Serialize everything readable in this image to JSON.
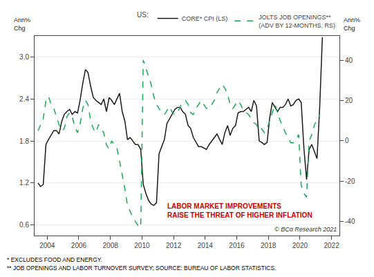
{
  "chart_data": {
    "type": "line",
    "ylabel": "Ann%\nChg",
    "y2label": "Ann%\nChg",
    "legend_title": "US:",
    "legend": "upper right",
    "grid": true,
    "xlim": [
      2003.2,
      2022.5
    ],
    "xticks": [
      2004,
      2006,
      2008,
      2010,
      2012,
      2014,
      2016,
      2018,
      2020,
      2022
    ],
    "ylim": [
      0.45,
      3.3
    ],
    "yticks": [
      0.6,
      1.2,
      1.8,
      2.4,
      {
        "value": 3.0,
        "label": "3.0"
      }
    ],
    "y2lim": [
      -47,
      52
    ],
    "y2ticks": [
      -40,
      -20,
      0,
      20,
      40
    ],
    "annotations": [
      {
        "text": "LABOR MARKET IMPROVEMENTS\nRAISE THE THREAT OF HIGHER INFLATION",
        "color": "#cc0000"
      },
      {
        "text": "© BCα Research 2021"
      }
    ],
    "footnotes": [
      "* EXCLUDES FOOD AND ENERGY.",
      "** JOB OPENINGS AND LABOR TURNOVER SURVEY; SOURCE: BUREAU OF LABOR STATISTICS."
    ],
    "series": [
      {
        "name": "CORE* CPI (LS)",
        "color": "#1a1a1a",
        "line_style": "solid",
        "axis": "y",
        "x": [
          2003.42,
          2003.58,
          2003.75,
          2003.92,
          2004.08,
          2004.25,
          2004.42,
          2004.58,
          2004.75,
          2004.92,
          2005.08,
          2005.25,
          2005.42,
          2005.58,
          2005.75,
          2005.92,
          2006.08,
          2006.25,
          2006.42,
          2006.58,
          2006.75,
          2006.92,
          2007.08,
          2007.25,
          2007.42,
          2007.58,
          2007.75,
          2007.92,
          2008.08,
          2008.25,
          2008.42,
          2008.58,
          2008.75,
          2008.92,
          2009.08,
          2009.25,
          2009.42,
          2009.58,
          2009.75,
          2009.92,
          2010.08,
          2010.25,
          2010.42,
          2010.58,
          2010.75,
          2010.92,
          2011.08,
          2011.25,
          2011.42,
          2011.58,
          2011.75,
          2011.92,
          2012.08,
          2012.25,
          2012.42,
          2012.58,
          2012.75,
          2012.92,
          2013.08,
          2013.25,
          2013.42,
          2013.58,
          2013.75,
          2013.92,
          2014.08,
          2014.25,
          2014.42,
          2014.58,
          2014.75,
          2014.92,
          2015.08,
          2015.25,
          2015.42,
          2015.58,
          2015.75,
          2015.92,
          2016.08,
          2016.25,
          2016.42,
          2016.58,
          2016.75,
          2016.92,
          2017.08,
          2017.25,
          2017.42,
          2017.58,
          2017.75,
          2017.92,
          2018.08,
          2018.25,
          2018.42,
          2018.58,
          2018.75,
          2018.92,
          2019.08,
          2019.25,
          2019.42,
          2019.58,
          2019.75,
          2019.92,
          2020.08,
          2020.25,
          2020.42,
          2020.58,
          2020.75,
          2020.92,
          2021.08,
          2021.25,
          2021.42
        ],
        "values": [
          1.2,
          1.15,
          1.18,
          1.75,
          1.82,
          1.88,
          1.95,
          1.95,
          1.9,
          2.08,
          2.18,
          2.22,
          2.25,
          2.18,
          2.22,
          2.2,
          2.38,
          2.62,
          2.82,
          2.78,
          2.58,
          2.42,
          2.38,
          2.35,
          2.32,
          2.4,
          2.22,
          2.42,
          2.38,
          2.32,
          2.4,
          2.48,
          2.22,
          2.08,
          1.82,
          1.85,
          1.8,
          1.75,
          1.75,
          1.68,
          1.18,
          1.05,
          0.95,
          0.9,
          0.88,
          0.92,
          1.62,
          1.72,
          1.82,
          2.05,
          2.12,
          2.18,
          2.25,
          2.28,
          2.28,
          2.22,
          2.18,
          2.02,
          1.98,
          1.85,
          1.78,
          1.72,
          1.72,
          1.7,
          1.68,
          1.75,
          1.8,
          1.85,
          1.9,
          1.82,
          1.75,
          1.92,
          2.02,
          1.88,
          1.98,
          2.02,
          2.2,
          2.22,
          2.22,
          2.25,
          2.28,
          2.22,
          2.38,
          2.3,
          1.8,
          1.78,
          1.75,
          1.78,
          2.12,
          2.35,
          2.28,
          2.22,
          2.28,
          2.28,
          2.32,
          2.4,
          2.3,
          2.32,
          2.38,
          2.4,
          2.35,
          1.7,
          1.25,
          1.68,
          1.75,
          1.65,
          1.55,
          2.28,
          3.28
        ]
      },
      {
        "name": "JOLTS JOB OPENINGS**\n(ADV BY 12-MONTHS, RS)",
        "color": "#1aaa55",
        "line_style": "dashed",
        "axis": "y2",
        "x": [
          2003.42,
          2003.58,
          2003.75,
          2003.92,
          2004.08,
          2004.25,
          2004.42,
          2004.58,
          2004.75,
          2004.92,
          2005.08,
          2005.25,
          2005.42,
          2005.58,
          2005.75,
          2005.92,
          2006.08,
          2006.25,
          2006.42,
          2006.58,
          2006.75,
          2006.92,
          2007.08,
          2007.25,
          2007.42,
          2007.58,
          2007.75,
          2007.92,
          2008.08,
          2008.25,
          2008.42,
          2008.58,
          2008.75,
          2008.92,
          2009.08,
          2009.25,
          2009.42,
          2009.58,
          2009.75,
          2009.92,
          2010.08,
          2010.25,
          2010.42,
          2010.58,
          2010.75,
          2010.92,
          2011.08,
          2011.25,
          2011.42,
          2011.58,
          2011.75,
          2011.92,
          2012.08,
          2012.25,
          2012.42,
          2012.58,
          2012.75,
          2012.92,
          2013.08,
          2013.25,
          2013.42,
          2013.58,
          2013.75,
          2013.92,
          2014.08,
          2014.25,
          2014.42,
          2014.58,
          2014.75,
          2014.92,
          2015.08,
          2015.25,
          2015.42,
          2015.58,
          2015.75,
          2015.92,
          2016.08,
          2016.25,
          2016.42,
          2016.58,
          2016.75,
          2016.92,
          2017.08,
          2017.25,
          2017.42,
          2017.58,
          2017.75,
          2017.92,
          2018.08,
          2018.25,
          2018.42,
          2018.58,
          2018.75,
          2018.92,
          2019.08,
          2019.25,
          2019.42,
          2019.58,
          2019.75,
          2019.92,
          2020.08,
          2020.25,
          2020.42,
          2020.58,
          2020.75,
          2020.92,
          2021.08,
          2021.25
        ],
        "values": [
          5.0,
          8.0,
          11.0,
          20.0,
          22.0,
          18.0,
          16.0,
          12.0,
          8.0,
          5.0,
          6.0,
          12.0,
          14.0,
          12.0,
          7.0,
          4.0,
          8.0,
          16.0,
          20.0,
          18.0,
          10.0,
          6.0,
          4.0,
          8.0,
          6.0,
          4.0,
          -2.0,
          -4.0,
          0.0,
          -2.0,
          -4.0,
          -10.0,
          -17.0,
          -24.0,
          -32.0,
          -35.0,
          -38.0,
          -40.0,
          -42.0,
          -43.0,
          40.0,
          36.0,
          32.0,
          28.0,
          22.0,
          18.0,
          16.0,
          14.0,
          13.0,
          15.0,
          17.0,
          14.0,
          13.0,
          14.0,
          17.0,
          19.0,
          20.0,
          18.0,
          14.0,
          13.0,
          16.0,
          18.0,
          20.0,
          18.0,
          16.0,
          16.0,
          18.0,
          20.0,
          24.0,
          26.0,
          28.0,
          26.0,
          23.0,
          18.0,
          16.0,
          18.0,
          20.0,
          18.0,
          15.0,
          14.0,
          13.0,
          11.0,
          9.0,
          8.0,
          5.0,
          6.0,
          4.0,
          6.0,
          10.0,
          14.0,
          18.0,
          14.0,
          10.0,
          7.0,
          4.0,
          2.0,
          -1.0,
          -1.0,
          1.0,
          3.0,
          -22.0,
          -26.0,
          -28.0,
          0.0,
          3.0,
          8.0,
          10.0,
          13.0
        ]
      }
    ]
  }
}
